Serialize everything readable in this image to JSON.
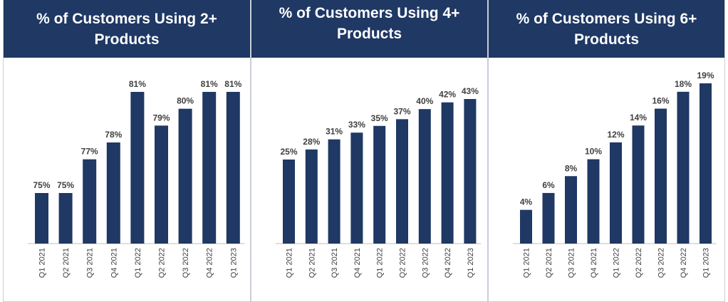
{
  "chart_data": [
    {
      "type": "bar",
      "title": "% of Customers Using 2+ Products",
      "categories": [
        "Q1 2021",
        "Q2 2021",
        "Q3 2021",
        "Q4 2021",
        "Q1 2022",
        "Q2 2022",
        "Q3 2022",
        "Q4 2022",
        "Q1 2023"
      ],
      "values": [
        75,
        75,
        77,
        78,
        81,
        79,
        80,
        81,
        81
      ],
      "value_labels": [
        "75%",
        "75%",
        "77%",
        "78%",
        "81%",
        "79%",
        "80%",
        "81%",
        "81%"
      ],
      "ylim": [
        72,
        81
      ],
      "color": "#1f3864"
    },
    {
      "type": "bar",
      "title": "% of Customers Using 4+ Products",
      "categories": [
        "Q1 2021",
        "Q2 2021",
        "Q3 2021",
        "Q4 2021",
        "Q1 2022",
        "Q2 2022",
        "Q3 2022",
        "Q4 2022",
        "Q1 2023"
      ],
      "values": [
        25,
        28,
        31,
        33,
        35,
        37,
        40,
        42,
        43
      ],
      "value_labels": [
        "25%",
        "28%",
        "31%",
        "33%",
        "35%",
        "37%",
        "40%",
        "42%",
        "43%"
      ],
      "ylim": [
        0,
        43
      ],
      "color": "#1f3864"
    },
    {
      "type": "bar",
      "title": "% of Customers Using 6+ Products",
      "categories": [
        "Q1 2021",
        "Q2 2021",
        "Q3 2021",
        "Q4 2021",
        "Q1 2022",
        "Q2 2022",
        "Q3 2022",
        "Q4 2022",
        "Q1 2023"
      ],
      "values": [
        4,
        6,
        8,
        10,
        12,
        14,
        16,
        18,
        19
      ],
      "value_labels": [
        "4%",
        "6%",
        "8%",
        "10%",
        "12%",
        "14%",
        "16%",
        "18%",
        "19%"
      ],
      "ylim": [
        0,
        19
      ],
      "color": "#1f3864"
    }
  ]
}
